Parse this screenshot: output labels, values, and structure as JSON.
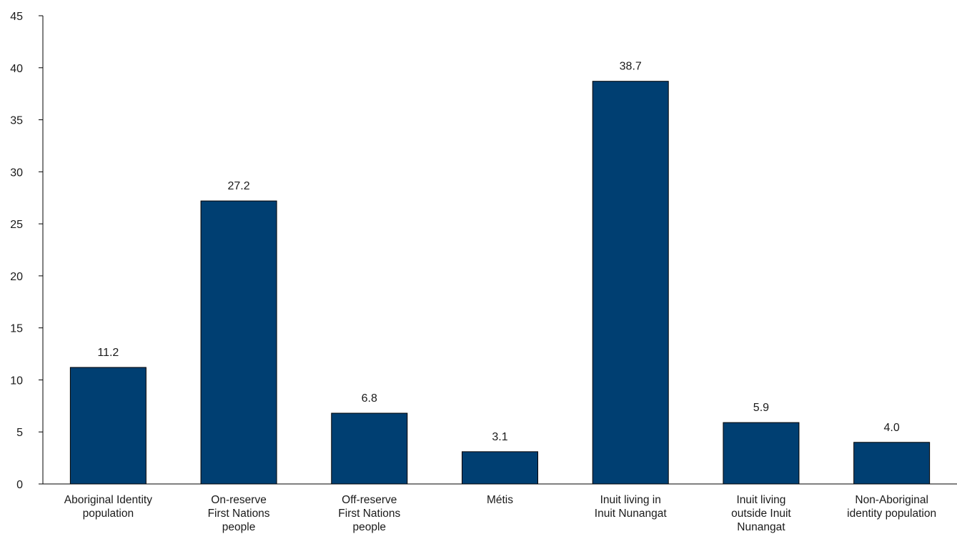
{
  "chart_data": {
    "type": "bar",
    "title": "",
    "xlabel": "",
    "ylabel": "",
    "ylim": [
      0,
      45
    ],
    "yticks": [
      "0",
      "5",
      "10",
      "15",
      "20",
      "25",
      "30",
      "35",
      "40",
      "45"
    ],
    "grid": false,
    "legend": "none",
    "bar_color": "#003f72",
    "categories": [
      [
        "Aboriginal Identity",
        "population"
      ],
      [
        "On-reserve",
        "First Nations",
        "people"
      ],
      [
        "Off-reserve",
        "First Nations",
        "people"
      ],
      [
        "Métis"
      ],
      [
        "Inuit living in",
        "Inuit Nunangat"
      ],
      [
        "Inuit living",
        "outside Inuit",
        "Nunangat"
      ],
      [
        "Non-Aboriginal",
        "identity population"
      ]
    ],
    "values": [
      11.2,
      27.2,
      6.8,
      3.1,
      38.7,
      5.9,
      4.0
    ],
    "data_labels": [
      "11.2",
      "27.2",
      "6.8",
      "3.1",
      "38.7",
      "5.9",
      "4.0"
    ]
  }
}
